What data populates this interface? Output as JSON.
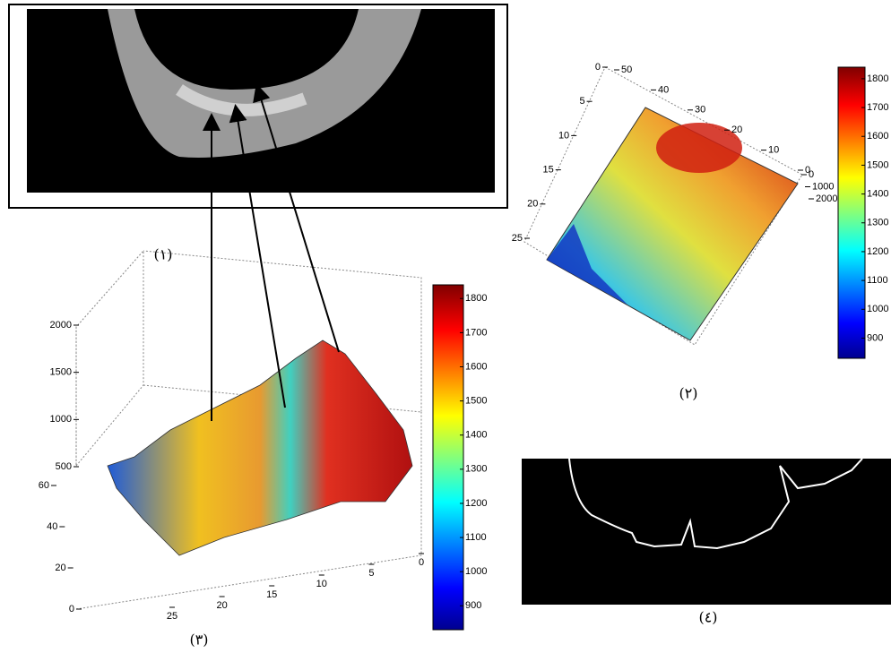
{
  "panel1": {
    "label": "(١)"
  },
  "panel2": {
    "label": "(٢)",
    "xlim": [
      0,
      50
    ],
    "xticks": [
      0,
      10,
      20,
      30,
      40,
      50
    ],
    "ylim": [
      0,
      25
    ],
    "yticks": [
      0,
      5,
      10,
      15,
      20,
      25
    ],
    "zlim": [
      0,
      2000
    ],
    "zticks": [
      0,
      1000,
      2000
    ],
    "colorbar": {
      "lim": [
        830,
        1840
      ],
      "ticks": [
        900,
        1000,
        1100,
        1200,
        1300,
        1400,
        1500,
        1600,
        1700,
        1800
      ]
    }
  },
  "panel3": {
    "label": "(٣)",
    "xlim": [
      0,
      25
    ],
    "xticks": [
      0,
      5,
      10,
      15,
      20,
      25
    ],
    "ylim": [
      0,
      60
    ],
    "yticks": [
      0,
      20,
      40,
      60
    ],
    "zlim": [
      500,
      2000
    ],
    "zticks": [
      500,
      1000,
      1500,
      2000
    ],
    "colorbar": {
      "lim": [
        830,
        1840
      ],
      "ticks": [
        900,
        1000,
        1100,
        1200,
        1300,
        1400,
        1500,
        1600,
        1700,
        1800
      ]
    }
  },
  "panel4": {
    "label": "(٤)"
  }
}
